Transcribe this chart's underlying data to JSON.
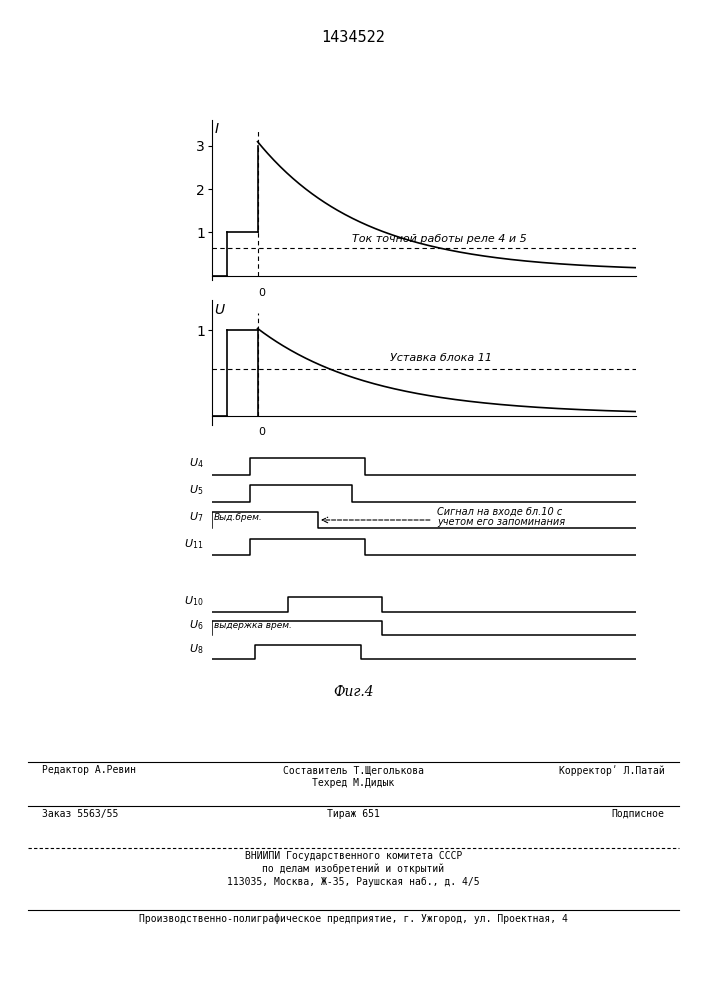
{
  "bg_color": "#ffffff",
  "line_color": "#000000",
  "top_title": "1434522",
  "annotation1": "Ток точной работы реле 4 и 5",
  "annotation2": "Уставка блока 11",
  "annotation3a": "Сигнал на входе бл.10 с",
  "annotation3b": "учетом его запоминания",
  "u7_label": "Выд.брем.",
  "u6_label": "выдержка врем.",
  "fig_label": "Фиг.4",
  "footer1_left": "Редактор А.Ревин",
  "footer1_center1": "Составитель Т.Щеголькова",
  "footer1_center2": "Техред М.Дидык",
  "footer1_right": "Корректорʹ Л.Патай",
  "footer2_left": "Заказ 5563/55",
  "footer2_center": "Тираж 651",
  "footer2_right": "Подписное",
  "footer3_1": "ВНИИПИ Государственного комитета СССР",
  "footer3_2": "по делам изобретений и открытий",
  "footer3_3": "113035, Москва, Ж-35, Раушская наб., д. 4/5",
  "footer4": "Производственно-полиграфическое предприятие, г. Ужгород, ул. Проектная, 4"
}
